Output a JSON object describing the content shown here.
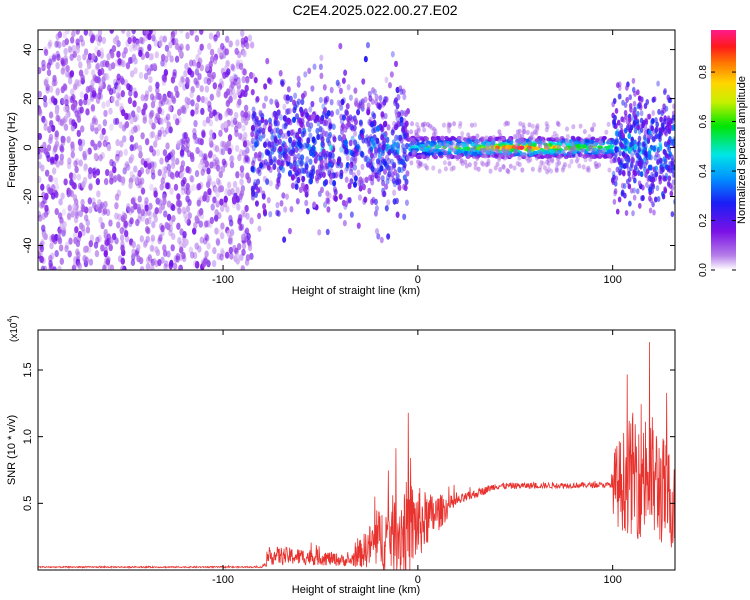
{
  "figure_title": "C2E4.2025.022.00.27.E02",
  "chart_data": [
    {
      "type": "heatmap",
      "xlabel": "Height of straight line (km)",
      "ylabel": "Frequency (Hz)",
      "xlim": [
        -195,
        132
      ],
      "ylim": [
        -50,
        48
      ],
      "xticks": [
        -100,
        0,
        100
      ],
      "yticks": [
        -40,
        -20,
        0,
        20,
        40
      ],
      "colorbar": {
        "label": "Normalized spectral amplitude",
        "range": [
          0,
          0.97
        ],
        "ticks": [
          0.0,
          0.2,
          0.4,
          0.6,
          0.8
        ],
        "tick_labels": [
          "0.0",
          "0.2",
          "0.4",
          "0.6",
          "0.8"
        ],
        "colormap": "rainbow (white-purple-blue-cyan-green-yellow-red-magenta)"
      },
      "regions": [
        {
          "x": [
            -195,
            -85
          ],
          "description_values": {
            "freq_spread": [
              -50,
              48
            ],
            "amplitude": 0.05
          }
        },
        {
          "x": [
            -85,
            -5
          ],
          "description_values": {
            "freq_spread": [
              -48,
              45
            ],
            "amplitude": 0.15
          }
        },
        {
          "x": [
            -5,
            100
          ],
          "description_values": {
            "center_freq": 0,
            "amplitude_peak": 0.95
          }
        },
        {
          "x": [
            100,
            132
          ],
          "description_values": {
            "freq_spread": [
              -25,
              30
            ],
            "amplitude": 0.3
          }
        }
      ],
      "grid": false
    },
    {
      "type": "line",
      "xlabel": "Height of straight line (km)",
      "ylabel": "SNR (10 * v/v)",
      "scale_note": "(x10",
      "scale_exponent": "4",
      "xlim": [
        -195,
        132
      ],
      "ylim": [
        0,
        1.8
      ],
      "xticks": [
        -100,
        0,
        100
      ],
      "yticks": [
        0.5,
        1.0,
        1.5
      ],
      "ytick_labels": [
        "0.5",
        "1.0",
        "1.5"
      ],
      "series": [
        {
          "color": "#e8322e",
          "envelope": [
            {
              "x": -195,
              "base": 0.02,
              "noise": 0.01
            },
            {
              "x": -80,
              "base": 0.02,
              "noise": 0.01
            },
            {
              "x": -75,
              "base": 0.08,
              "noise": 0.14
            },
            {
              "x": -50,
              "base": 0.07,
              "noise": 0.12
            },
            {
              "x": -35,
              "base": 0.05,
              "noise": 0.08
            },
            {
              "x": -20,
              "base": 0.14,
              "noise": 0.45
            },
            {
              "x": -5,
              "base": 0.16,
              "noise": 0.75
            },
            {
              "x": 5,
              "base": 0.3,
              "noise": 0.4
            },
            {
              "x": 20,
              "base": 0.5,
              "noise": 0.08
            },
            {
              "x": 40,
              "base": 0.62,
              "noise": 0.05
            },
            {
              "x": 99,
              "base": 0.63,
              "noise": 0.04
            },
            {
              "x": 101,
              "base": 0.5,
              "noise": 0.6
            },
            {
              "x": 115,
              "base": 0.55,
              "noise": 1.1
            },
            {
              "x": 132,
              "base": 0.35,
              "noise": 0.7
            }
          ]
        }
      ],
      "grid": false
    }
  ]
}
